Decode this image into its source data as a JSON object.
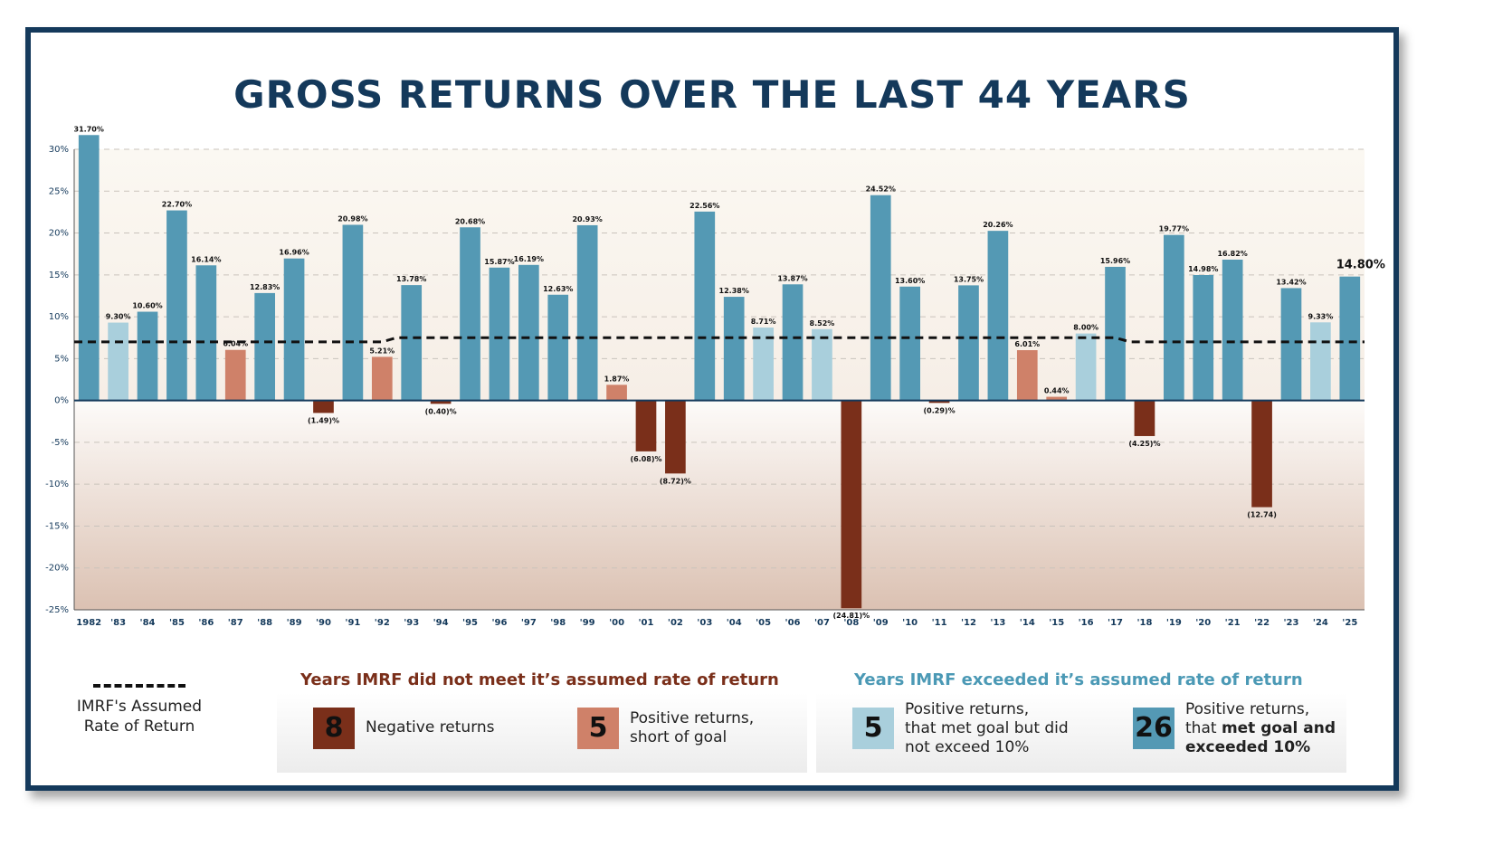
{
  "title": "GROSS RETURNS OVER THE LAST 44 YEARS",
  "colors": {
    "frame": "#14395b",
    "exceeded": "#5499b4",
    "met": "#a9cfdc",
    "short": "#cf8169",
    "negative": "#7a2f1a",
    "title": "#14395b"
  },
  "chart_data": {
    "type": "bar",
    "ylim": [
      -25,
      30
    ],
    "yticks": [
      "30%",
      "25%",
      "20%",
      "15%",
      "10%",
      "5%",
      "0%",
      "-5%",
      "-10%",
      "-15%",
      "-20%",
      "-25%"
    ],
    "categories": [
      "1982",
      "'83",
      "'84",
      "'85",
      "'86",
      "'87",
      "'88",
      "'89",
      "'90",
      "'91",
      "'92",
      "'93",
      "'94",
      "'95",
      "'96",
      "'97",
      "'98",
      "'99",
      "'00",
      "'01",
      "'02",
      "'03",
      "'04",
      "'05",
      "'06",
      "'07",
      "'08",
      "'09",
      "'10",
      "'11",
      "'12",
      "'13",
      "'14",
      "'15",
      "'16",
      "'17",
      "'18",
      "'19",
      "'20",
      "'21",
      "'22",
      "'23",
      "'24",
      "'25"
    ],
    "values": [
      31.7,
      9.3,
      10.6,
      22.7,
      16.14,
      6.04,
      12.83,
      16.96,
      -1.49,
      20.98,
      5.21,
      13.78,
      -0.4,
      20.68,
      15.87,
      16.19,
      12.63,
      20.93,
      1.87,
      -6.08,
      -8.72,
      22.56,
      12.38,
      8.71,
      13.87,
      8.52,
      -24.81,
      24.52,
      13.6,
      -0.29,
      13.75,
      20.26,
      6.01,
      0.44,
      8.0,
      15.96,
      -4.25,
      19.77,
      14.98,
      16.82,
      -12.74,
      13.42,
      9.33,
      14.8
    ],
    "data_labels": [
      "31.70%",
      "9.30%",
      "10.60%",
      "22.70%",
      "16.14%",
      "6.04%",
      "12.83%",
      "16.96%",
      "(1.49)%",
      "20.98%",
      "5.21%",
      "13.78%",
      "(0.40)%",
      "20.68%",
      "15.87%",
      "16.19%",
      "12.63%",
      "20.93%",
      "1.87%",
      "(6.08)%",
      "(8.72)%",
      "22.56%",
      "12.38%",
      "8.71%",
      "13.87%",
      "8.52%",
      "(24.81)%",
      "24.52%",
      "13.60%",
      "(0.29)%",
      "13.75%",
      "20.26%",
      "6.01%",
      "0.44%",
      "8.00%",
      "15.96%",
      "(4.25)%",
      "19.77%",
      "14.98%",
      "16.82%",
      "(12.74)",
      "13.42%",
      "9.33%",
      "14.80%"
    ],
    "categories_class": [
      "exceeded",
      "met",
      "exceeded",
      "exceeded",
      "exceeded",
      "short",
      "exceeded",
      "exceeded",
      "negative",
      "exceeded",
      "short",
      "exceeded",
      "negative",
      "exceeded",
      "exceeded",
      "exceeded",
      "exceeded",
      "exceeded",
      "short",
      "negative",
      "negative",
      "exceeded",
      "exceeded",
      "met",
      "exceeded",
      "met",
      "negative",
      "exceeded",
      "exceeded",
      "negative",
      "exceeded",
      "exceeded",
      "short",
      "short",
      "met",
      "exceeded",
      "negative",
      "exceeded",
      "exceeded",
      "exceeded",
      "negative",
      "exceeded",
      "met",
      "exceeded"
    ],
    "assumed_rate": [
      {
        "from": "1982",
        "to": "'92",
        "value": 7.0
      },
      {
        "from": "'93",
        "to": "'17",
        "value": 7.5
      },
      {
        "from": "'18",
        "to": "'25",
        "value": 7.0
      }
    ],
    "grid": true
  },
  "legend": {
    "line_label": "IMRF's Assumed Rate of Return",
    "missed_title": "Years IMRF did not meet it’s assumed rate of return",
    "exceeded_title": "Years IMRF exceeded it’s assumed rate of return",
    "negative": {
      "count": "8",
      "label": "Negative returns"
    },
    "short": {
      "count": "5",
      "label_line1": "Positive returns,",
      "label_line2": "short of goal"
    },
    "met": {
      "count": "5",
      "label_line1": "Positive returns,",
      "label_line2": "that met goal but did",
      "label_line3": "not exceed 10%"
    },
    "exceeded": {
      "count": "26",
      "label_line1": "Positive returns,",
      "label_line2_prefix": "that ",
      "label_line2_bold": "met goal and",
      "label_line3_bold": "exceeded 10%"
    }
  }
}
